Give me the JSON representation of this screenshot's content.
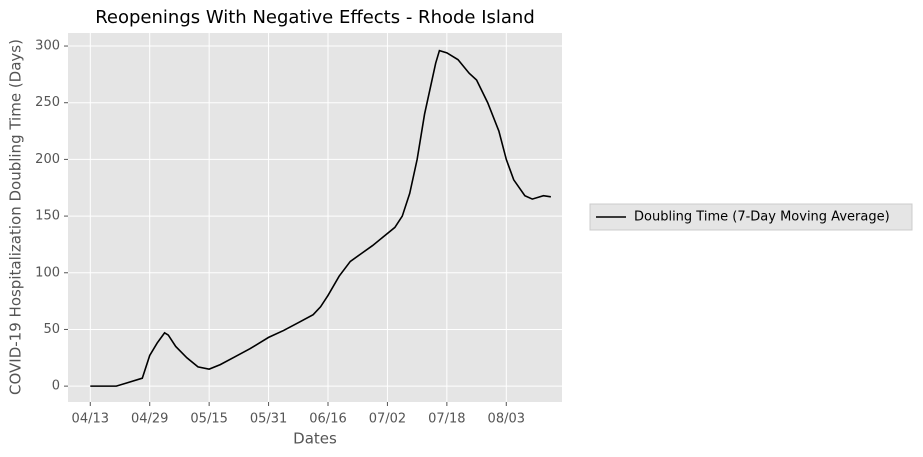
{
  "chart_data": {
    "type": "line",
    "title": "Reopenings With Negative Effects - Rhode Island",
    "x_label": "Dates",
    "y_label": "COVID-19 Hospitalization Doubling Time (Days)",
    "x": [
      "04/13",
      "04/17",
      "04/20",
      "04/23",
      "04/27",
      "04/29",
      "05/01",
      "05/03",
      "05/04",
      "05/06",
      "05/09",
      "05/12",
      "05/15",
      "05/18",
      "05/22",
      "05/26",
      "05/29",
      "05/31",
      "06/04",
      "06/08",
      "06/12",
      "06/14",
      "06/16",
      "06/19",
      "06/22",
      "06/25",
      "06/28",
      "07/01",
      "07/04",
      "07/06",
      "07/08",
      "07/10",
      "07/12",
      "07/14",
      "07/15",
      "07/16",
      "07/18",
      "07/21",
      "07/24",
      "07/26",
      "07/29",
      "08/01",
      "08/03",
      "08/05",
      "08/08",
      "08/10",
      "08/13",
      "08/15"
    ],
    "series": [
      {
        "name": "Doubling Time (7-Day Moving Average)",
        "color": "#000000",
        "values": [
          0,
          0,
          0,
          3,
          7,
          27,
          38,
          47,
          45,
          35,
          25,
          17,
          15,
          19,
          26,
          33,
          39,
          43,
          49,
          56,
          63,
          70,
          80,
          97,
          110,
          117,
          124,
          132,
          140,
          150,
          170,
          200,
          240,
          270,
          285,
          296,
          294,
          288,
          276,
          270,
          250,
          225,
          200,
          182,
          168,
          165,
          168,
          167
        ]
      }
    ],
    "xlim": [
      "04/07",
      "08/18"
    ],
    "xticks": [
      "04/13",
      "04/29",
      "05/15",
      "05/31",
      "06/16",
      "07/02",
      "07/18",
      "08/03"
    ],
    "ylim": [
      -14,
      311.5
    ],
    "yticks": [
      0,
      50,
      100,
      150,
      200,
      250,
      300
    ],
    "grid": true,
    "legend": "right"
  }
}
